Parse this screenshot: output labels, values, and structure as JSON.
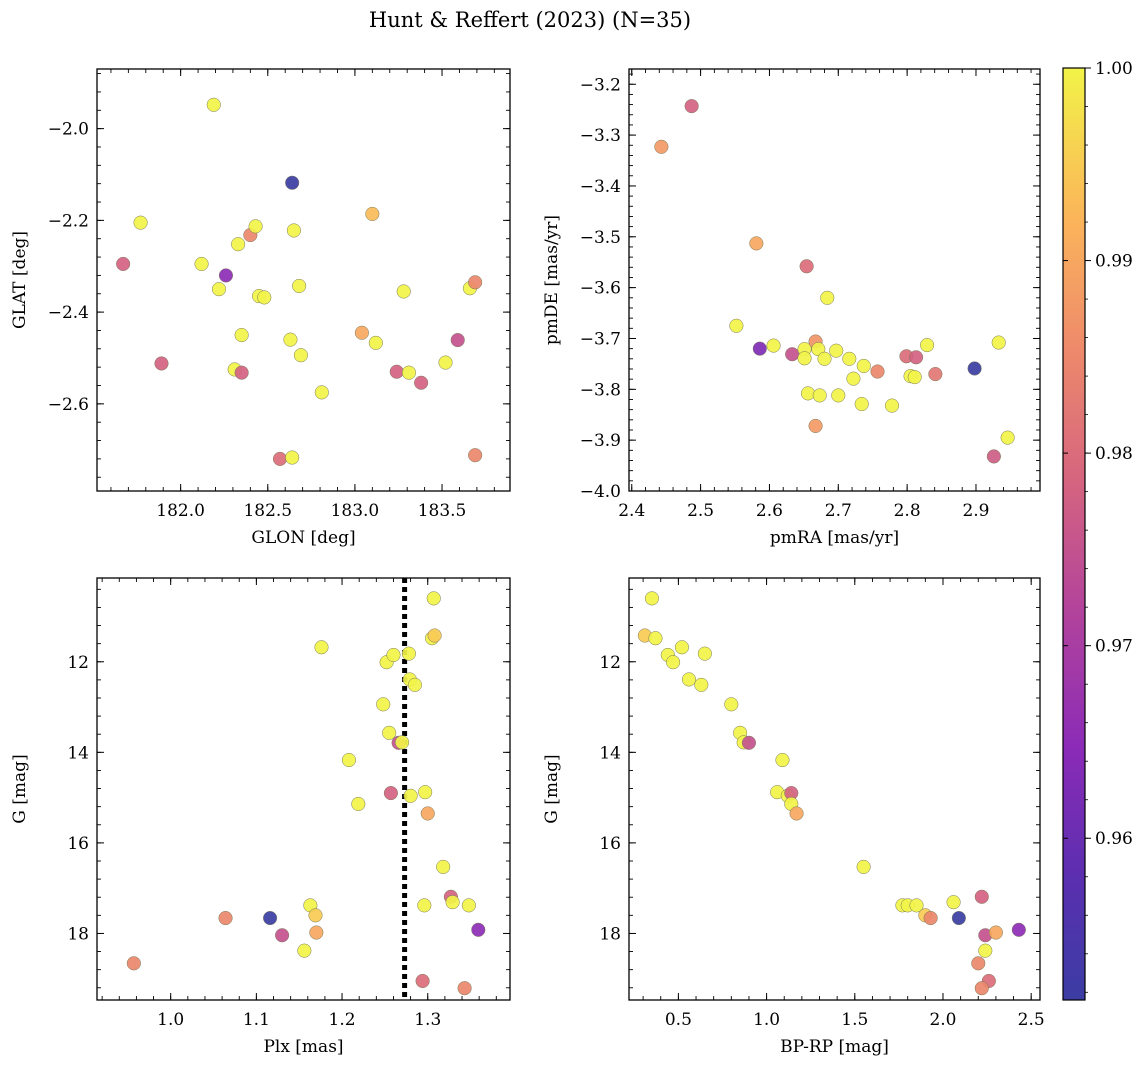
{
  "figure": {
    "title": "Hunt & Reffert (2023) (N=35)",
    "colorbar": {
      "min": 0.9516,
      "max": 1.0,
      "ticks": [
        0.96,
        0.97,
        0.98,
        0.99,
        1.0
      ],
      "tick_labels": [
        "0.96",
        "0.97",
        "0.98",
        "0.99",
        "1.00"
      ],
      "colormap": "plasma"
    }
  },
  "chart_data": [
    {
      "id": "glon-glat",
      "type": "scatter",
      "xlabel": "GLON [deg]",
      "ylabel": "GLAT [deg]",
      "xlim": [
        181.52,
        183.89
      ],
      "ylim": [
        -2.79,
        -1.87
      ],
      "y_inverted": false,
      "xticks": [
        182.0,
        182.5,
        183.0,
        183.5
      ],
      "xtick_labels": [
        "182.0",
        "182.5",
        "183.0",
        "183.5"
      ],
      "yticks": [
        -2.6,
        -2.4,
        -2.2,
        -2.0
      ],
      "ytick_labels": [
        "−2.6",
        "−2.4",
        "−2.2",
        "−2.0"
      ],
      "points": [
        {
          "x": 181.67,
          "y": -2.295,
          "c": 0.978
        },
        {
          "x": 181.77,
          "y": -2.205,
          "c": 1.0
        },
        {
          "x": 181.89,
          "y": -2.512,
          "c": 0.978
        },
        {
          "x": 182.12,
          "y": -2.295,
          "c": 1.0
        },
        {
          "x": 182.19,
          "y": -1.948,
          "c": 1.0
        },
        {
          "x": 182.22,
          "y": -2.35,
          "c": 1.0
        },
        {
          "x": 182.26,
          "y": -2.32,
          "c": 0.965
        },
        {
          "x": 182.31,
          "y": -2.525,
          "c": 1.0
        },
        {
          "x": 182.33,
          "y": -2.252,
          "c": 1.0
        },
        {
          "x": 182.35,
          "y": -2.45,
          "c": 1.0
        },
        {
          "x": 182.35,
          "y": -2.532,
          "c": 0.978
        },
        {
          "x": 182.4,
          "y": -2.232,
          "c": 0.985
        },
        {
          "x": 182.43,
          "y": -2.213,
          "c": 1.0
        },
        {
          "x": 182.45,
          "y": -2.365,
          "c": 1.0
        },
        {
          "x": 182.48,
          "y": -2.368,
          "c": 1.0
        },
        {
          "x": 182.57,
          "y": -2.72,
          "c": 0.98
        },
        {
          "x": 182.63,
          "y": -2.46,
          "c": 1.0
        },
        {
          "x": 182.64,
          "y": -2.118,
          "c": 0.9516
        },
        {
          "x": 182.65,
          "y": -2.222,
          "c": 1.0
        },
        {
          "x": 182.64,
          "y": -2.717,
          "c": 1.0
        },
        {
          "x": 182.68,
          "y": -2.343,
          "c": 1.0
        },
        {
          "x": 182.69,
          "y": -2.494,
          "c": 1.0
        },
        {
          "x": 182.81,
          "y": -2.575,
          "c": 1.0
        },
        {
          "x": 183.04,
          "y": -2.445,
          "c": 0.99
        },
        {
          "x": 183.1,
          "y": -2.186,
          "c": 0.993
        },
        {
          "x": 183.12,
          "y": -2.467,
          "c": 1.0
        },
        {
          "x": 183.24,
          "y": -2.53,
          "c": 0.978
        },
        {
          "x": 183.28,
          "y": -2.355,
          "c": 1.0
        },
        {
          "x": 183.31,
          "y": -2.532,
          "c": 1.0
        },
        {
          "x": 183.38,
          "y": -2.554,
          "c": 0.978
        },
        {
          "x": 183.52,
          "y": -2.51,
          "c": 1.0
        },
        {
          "x": 183.59,
          "y": -2.461,
          "c": 0.975
        },
        {
          "x": 183.66,
          "y": -2.348,
          "c": 1.0
        },
        {
          "x": 183.69,
          "y": -2.335,
          "c": 0.985
        },
        {
          "x": 183.69,
          "y": -2.712,
          "c": 0.985
        }
      ]
    },
    {
      "id": "pmra-pmde",
      "type": "scatter",
      "xlabel": "pmRA [mas/yr]",
      "ylabel": "pmDE [mas/yr]",
      "xlim": [
        2.396,
        2.993
      ],
      "ylim": [
        -4.0,
        -3.17
      ],
      "y_inverted": false,
      "xticks": [
        2.4,
        2.5,
        2.6,
        2.7,
        2.8,
        2.9
      ],
      "xtick_labels": [
        "2.4",
        "2.5",
        "2.6",
        "2.7",
        "2.8",
        "2.9"
      ],
      "yticks": [
        -4.0,
        -3.9,
        -3.8,
        -3.7,
        -3.6,
        -3.5,
        -3.4,
        -3.3,
        -3.2
      ],
      "ytick_labels": [
        "−4.0",
        "−3.9",
        "−3.8",
        "−3.7",
        "−3.6",
        "−3.5",
        "−3.4",
        "−3.3",
        "−3.2"
      ],
      "points": [
        {
          "x": 2.443,
          "y": -3.323,
          "c": 0.988
        },
        {
          "x": 2.487,
          "y": -3.243,
          "c": 0.978
        },
        {
          "x": 2.552,
          "y": -3.675,
          "c": 1.0
        },
        {
          "x": 2.581,
          "y": -3.513,
          "c": 0.99
        },
        {
          "x": 2.586,
          "y": -3.72,
          "c": 0.963
        },
        {
          "x": 2.606,
          "y": -3.714,
          "c": 1.0
        },
        {
          "x": 2.633,
          "y": -3.731,
          "c": 0.975
        },
        {
          "x": 2.651,
          "y": -3.721,
          "c": 1.0
        },
        {
          "x": 2.651,
          "y": -3.739,
          "c": 1.0
        },
        {
          "x": 2.654,
          "y": -3.558,
          "c": 0.98
        },
        {
          "x": 2.656,
          "y": -3.808,
          "c": 1.0
        },
        {
          "x": 2.667,
          "y": -3.872,
          "c": 0.988
        },
        {
          "x": 2.667,
          "y": -3.706,
          "c": 0.987
        },
        {
          "x": 2.671,
          "y": -3.721,
          "c": 1.0
        },
        {
          "x": 2.673,
          "y": -3.812,
          "c": 1.0
        },
        {
          "x": 2.68,
          "y": -3.74,
          "c": 1.0
        },
        {
          "x": 2.684,
          "y": -3.62,
          "c": 1.0
        },
        {
          "x": 2.697,
          "y": -3.724,
          "c": 1.0
        },
        {
          "x": 2.7,
          "y": -3.812,
          "c": 1.0
        },
        {
          "x": 2.716,
          "y": -3.74,
          "c": 1.0
        },
        {
          "x": 2.722,
          "y": -3.779,
          "c": 1.0
        },
        {
          "x": 2.734,
          "y": -3.829,
          "c": 1.0
        },
        {
          "x": 2.737,
          "y": -3.754,
          "c": 1.0
        },
        {
          "x": 2.757,
          "y": -3.765,
          "c": 0.985
        },
        {
          "x": 2.778,
          "y": -3.832,
          "c": 1.0
        },
        {
          "x": 2.799,
          "y": -3.735,
          "c": 0.98
        },
        {
          "x": 2.805,
          "y": -3.774,
          "c": 1.0
        },
        {
          "x": 2.811,
          "y": -3.776,
          "c": 1.0
        },
        {
          "x": 2.813,
          "y": -3.737,
          "c": 0.978
        },
        {
          "x": 2.829,
          "y": -3.713,
          "c": 1.0
        },
        {
          "x": 2.841,
          "y": -3.77,
          "c": 0.982
        },
        {
          "x": 2.898,
          "y": -3.759,
          "c": 0.9516
        },
        {
          "x": 2.926,
          "y": -3.932,
          "c": 0.977
        },
        {
          "x": 2.933,
          "y": -3.708,
          "c": 1.0
        },
        {
          "x": 2.946,
          "y": -3.895,
          "c": 1.0
        }
      ]
    },
    {
      "id": "plx-g",
      "type": "scatter",
      "xlabel": "Plx [mas]",
      "ylabel": "G [mag]",
      "xlim": [
        0.914,
        1.396
      ],
      "ylim": [
        19.47,
        10.15
      ],
      "y_inverted": true,
      "xticks": [
        1.0,
        1.1,
        1.2,
        1.3
      ],
      "xtick_labels": [
        "1.0",
        "1.1",
        "1.2",
        "1.3"
      ],
      "yticks": [
        12,
        14,
        16,
        18
      ],
      "ytick_labels": [
        "12",
        "14",
        "16",
        "18"
      ],
      "vline": {
        "x": 1.273,
        "style": "dotted"
      },
      "points": [
        {
          "x": 0.957,
          "y": 18.66,
          "c": 0.985
        },
        {
          "x": 1.064,
          "y": 17.66,
          "c": 0.985
        },
        {
          "x": 1.116,
          "y": 17.66,
          "c": 0.9516
        },
        {
          "x": 1.13,
          "y": 18.04,
          "c": 0.975
        },
        {
          "x": 1.156,
          "y": 18.38,
          "c": 1.0
        },
        {
          "x": 1.163,
          "y": 17.38,
          "c": 1.0
        },
        {
          "x": 1.169,
          "y": 17.6,
          "c": 0.995
        },
        {
          "x": 1.17,
          "y": 17.98,
          "c": 0.99
        },
        {
          "x": 1.176,
          "y": 11.68,
          "c": 1.0
        },
        {
          "x": 1.208,
          "y": 14.17,
          "c": 1.0
        },
        {
          "x": 1.219,
          "y": 15.14,
          "c": 1.0
        },
        {
          "x": 1.248,
          "y": 12.94,
          "c": 1.0
        },
        {
          "x": 1.252,
          "y": 12.01,
          "c": 1.0
        },
        {
          "x": 1.255,
          "y": 13.57,
          "c": 1.0
        },
        {
          "x": 1.257,
          "y": 14.9,
          "c": 0.978
        },
        {
          "x": 1.26,
          "y": 11.85,
          "c": 1.0
        },
        {
          "x": 1.266,
          "y": 13.79,
          "c": 0.975
        },
        {
          "x": 1.27,
          "y": 13.78,
          "c": 1.0
        },
        {
          "x": 1.278,
          "y": 11.82,
          "c": 1.0
        },
        {
          "x": 1.279,
          "y": 12.39,
          "c": 1.0
        },
        {
          "x": 1.28,
          "y": 14.96,
          "c": 1.0
        },
        {
          "x": 1.285,
          "y": 12.51,
          "c": 1.0
        },
        {
          "x": 1.294,
          "y": 19.05,
          "c": 0.98
        },
        {
          "x": 1.296,
          "y": 17.38,
          "c": 1.0
        },
        {
          "x": 1.297,
          "y": 14.88,
          "c": 1.0
        },
        {
          "x": 1.3,
          "y": 15.35,
          "c": 0.99
        },
        {
          "x": 1.305,
          "y": 11.48,
          "c": 1.0
        },
        {
          "x": 1.307,
          "y": 10.6,
          "c": 1.0
        },
        {
          "x": 1.308,
          "y": 11.42,
          "c": 0.995
        },
        {
          "x": 1.318,
          "y": 16.53,
          "c": 1.0
        },
        {
          "x": 1.327,
          "y": 17.19,
          "c": 0.978
        },
        {
          "x": 1.329,
          "y": 17.31,
          "c": 1.0
        },
        {
          "x": 1.343,
          "y": 19.21,
          "c": 0.985
        },
        {
          "x": 1.348,
          "y": 17.38,
          "c": 1.0
        },
        {
          "x": 1.359,
          "y": 17.92,
          "c": 0.965
        }
      ]
    },
    {
      "id": "bprp-g",
      "type": "scatter",
      "xlabel": "BP-RP [mag]",
      "ylabel": "G [mag]",
      "xlim": [
        0.22,
        2.55
      ],
      "ylim": [
        19.47,
        10.15
      ],
      "y_inverted": true,
      "xticks": [
        0.5,
        1.0,
        1.5,
        2.0,
        2.5
      ],
      "xtick_labels": [
        "0.5",
        "1.0",
        "1.5",
        "2.0",
        "2.5"
      ],
      "yticks": [
        12,
        14,
        16,
        18
      ],
      "ytick_labels": [
        "12",
        "14",
        "16",
        "18"
      ],
      "points": [
        {
          "x": 0.35,
          "y": 10.6,
          "c": 1.0
        },
        {
          "x": 0.31,
          "y": 11.42,
          "c": 0.995
        },
        {
          "x": 0.37,
          "y": 11.48,
          "c": 1.0
        },
        {
          "x": 0.44,
          "y": 11.85,
          "c": 1.0
        },
        {
          "x": 0.47,
          "y": 12.01,
          "c": 1.0
        },
        {
          "x": 0.52,
          "y": 11.68,
          "c": 1.0
        },
        {
          "x": 0.56,
          "y": 12.39,
          "c": 1.0
        },
        {
          "x": 0.63,
          "y": 12.51,
          "c": 1.0
        },
        {
          "x": 0.65,
          "y": 11.82,
          "c": 1.0
        },
        {
          "x": 0.8,
          "y": 12.94,
          "c": 1.0
        },
        {
          "x": 0.85,
          "y": 13.57,
          "c": 1.0
        },
        {
          "x": 0.87,
          "y": 13.78,
          "c": 1.0
        },
        {
          "x": 0.9,
          "y": 13.79,
          "c": 0.975
        },
        {
          "x": 1.09,
          "y": 14.17,
          "c": 1.0
        },
        {
          "x": 1.06,
          "y": 14.88,
          "c": 1.0
        },
        {
          "x": 1.12,
          "y": 14.96,
          "c": 1.0
        },
        {
          "x": 1.14,
          "y": 14.9,
          "c": 0.978
        },
        {
          "x": 1.14,
          "y": 15.14,
          "c": 1.0
        },
        {
          "x": 1.17,
          "y": 15.35,
          "c": 0.99
        },
        {
          "x": 1.55,
          "y": 16.53,
          "c": 1.0
        },
        {
          "x": 1.77,
          "y": 17.38,
          "c": 1.0
        },
        {
          "x": 1.8,
          "y": 17.38,
          "c": 1.0
        },
        {
          "x": 1.85,
          "y": 17.38,
          "c": 1.0
        },
        {
          "x": 1.9,
          "y": 17.6,
          "c": 0.995
        },
        {
          "x": 1.93,
          "y": 17.66,
          "c": 0.985
        },
        {
          "x": 2.06,
          "y": 17.31,
          "c": 1.0
        },
        {
          "x": 2.09,
          "y": 17.66,
          "c": 0.9516
        },
        {
          "x": 2.22,
          "y": 17.19,
          "c": 0.978
        },
        {
          "x": 2.24,
          "y": 18.04,
          "c": 0.975
        },
        {
          "x": 2.24,
          "y": 18.38,
          "c": 1.0
        },
        {
          "x": 2.3,
          "y": 17.98,
          "c": 0.99
        },
        {
          "x": 2.2,
          "y": 18.66,
          "c": 0.985
        },
        {
          "x": 2.26,
          "y": 19.05,
          "c": 0.98
        },
        {
          "x": 2.22,
          "y": 19.21,
          "c": 0.985
        },
        {
          "x": 2.43,
          "y": 17.92,
          "c": 0.965
        }
      ]
    }
  ]
}
